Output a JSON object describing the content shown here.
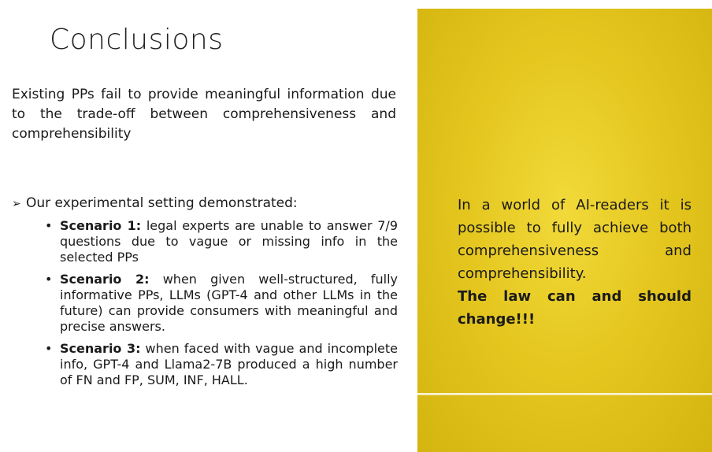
{
  "slide": {
    "title": "Conclusions",
    "intro": "Existing PPs fail to provide meaningful information due to the trade-off between comprehensiveness and comprehensibility",
    "setting_heading": "Our experimental setting demonstrated:",
    "bullet_symbol": "•",
    "arrow_symbol": "➢",
    "scenarios": [
      {
        "label": "Scenario 1:",
        "text": " legal experts are unable to answer 7/9 questions due to vague or missing info in the selected PPs"
      },
      {
        "label": "Scenario 2:",
        "text": " when given well-structured, fully informative PPs, LLMs (GPT-4 and other LLMs in the future) can provide consumers with meaningful and precise answers."
      },
      {
        "label": "Scenario 3:",
        "text": " when faced with vague and incomplete info, GPT-4 and Llama2-7B produced a high number of FN and FP, SUM, INF, HALL."
      }
    ],
    "panel": {
      "statement": "In a world of AI-readers it is possible to fully achieve both comprehensiveness and comprehensibility.",
      "call_to_action": "The law can and should change!!!"
    }
  },
  "colors": {
    "panel_accent": "#e5c720",
    "text": "#1a1a1a"
  }
}
